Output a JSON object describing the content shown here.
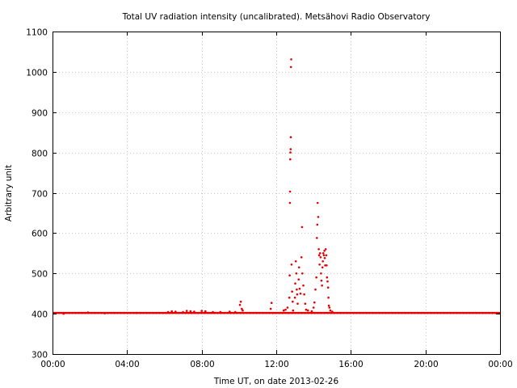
{
  "chart_data": {
    "type": "scatter",
    "title": "Total UV radiation intensity (uncalibrated). Metsähovi Radio Observatory",
    "xlabel": "Time UT, on date 2013-02-26",
    "ylabel": "Arbitrary unit",
    "xlim": [
      0,
      24
    ],
    "ylim": [
      300,
      1100
    ],
    "x_unit": "hours UT",
    "x_ticks": [
      "00:00",
      "04:00",
      "08:00",
      "12:00",
      "16:00",
      "20:00",
      "00:00"
    ],
    "y_ticks": [
      "300",
      "400",
      "500",
      "600",
      "700",
      "800",
      "900",
      "1000",
      "1100"
    ],
    "grid": true,
    "marker_color": "#e60000",
    "baseline": {
      "x_range": [
        0,
        24
      ],
      "value": 402
    },
    "series": [
      {
        "points": [
          [
            0.6,
            400
          ],
          [
            1.9,
            403
          ],
          [
            2.8,
            401
          ],
          [
            4.5,
            402
          ],
          [
            6.2,
            404
          ],
          [
            6.4,
            406
          ],
          [
            6.6,
            405
          ],
          [
            7.0,
            404
          ],
          [
            7.2,
            407
          ],
          [
            7.4,
            406
          ],
          [
            7.6,
            405
          ],
          [
            8.0,
            407
          ],
          [
            8.2,
            406
          ],
          [
            8.6,
            404
          ],
          [
            9.0,
            404
          ],
          [
            9.5,
            405
          ],
          [
            9.8,
            404
          ],
          [
            10.05,
            422
          ],
          [
            10.1,
            430
          ],
          [
            10.15,
            412
          ],
          [
            10.2,
            408
          ],
          [
            11.7,
            412
          ],
          [
            11.75,
            427
          ],
          [
            12.4,
            408
          ],
          [
            12.5,
            410
          ],
          [
            12.6,
            415
          ],
          [
            12.7,
            440
          ],
          [
            12.72,
            495
          ],
          [
            12.73,
            675
          ],
          [
            12.74,
            703
          ],
          [
            12.75,
            783
          ],
          [
            12.76,
            800
          ],
          [
            12.77,
            808
          ],
          [
            12.78,
            838
          ],
          [
            12.79,
            1012
          ],
          [
            12.8,
            1031
          ],
          [
            12.82,
            522
          ],
          [
            12.85,
            455
          ],
          [
            12.88,
            430
          ],
          [
            12.9,
            408
          ],
          [
            13.0,
            440
          ],
          [
            13.02,
            475
          ],
          [
            13.05,
            530
          ],
          [
            13.08,
            500
          ],
          [
            13.1,
            460
          ],
          [
            13.12,
            448
          ],
          [
            13.15,
            425
          ],
          [
            13.2,
            485
          ],
          [
            13.22,
            515
          ],
          [
            13.25,
            462
          ],
          [
            13.3,
            450
          ],
          [
            13.35,
            540
          ],
          [
            13.38,
            615
          ],
          [
            13.4,
            500
          ],
          [
            13.45,
            470
          ],
          [
            13.5,
            448
          ],
          [
            13.55,
            425
          ],
          [
            13.6,
            410
          ],
          [
            13.7,
            408
          ],
          [
            13.9,
            406
          ],
          [
            14.0,
            415
          ],
          [
            14.05,
            428
          ],
          [
            14.1,
            460
          ],
          [
            14.15,
            490
          ],
          [
            14.18,
            588
          ],
          [
            14.2,
            621
          ],
          [
            14.22,
            675
          ],
          [
            14.25,
            640
          ],
          [
            14.28,
            560
          ],
          [
            14.3,
            545
          ],
          [
            14.32,
            522
          ],
          [
            14.35,
            550
          ],
          [
            14.38,
            540
          ],
          [
            14.4,
            500
          ],
          [
            14.42,
            482
          ],
          [
            14.45,
            470
          ],
          [
            14.48,
            515
          ],
          [
            14.5,
            530
          ],
          [
            14.52,
            550
          ],
          [
            14.55,
            545
          ],
          [
            14.58,
            556
          ],
          [
            14.6,
            538
          ],
          [
            14.62,
            520
          ],
          [
            14.65,
            560
          ],
          [
            14.68,
            545
          ],
          [
            14.7,
            520
          ],
          [
            14.72,
            490
          ],
          [
            14.75,
            480
          ],
          [
            14.78,
            465
          ],
          [
            14.8,
            440
          ],
          [
            14.82,
            420
          ],
          [
            14.85,
            415
          ],
          [
            14.9,
            408
          ],
          [
            15.0,
            405
          ]
        ]
      }
    ]
  }
}
